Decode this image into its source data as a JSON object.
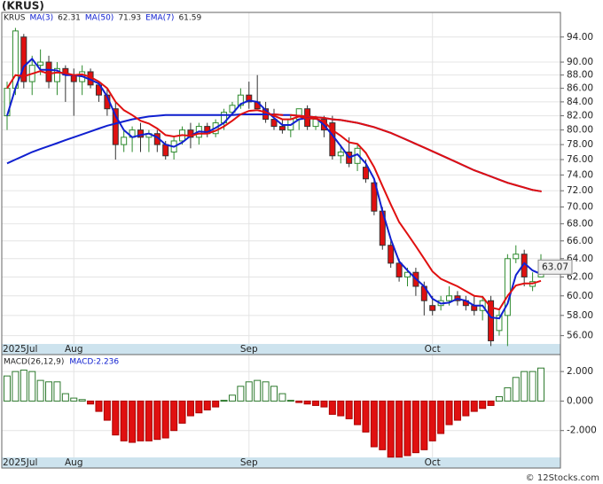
{
  "title": "(KRUS)",
  "credit": "© 12Stocks.com",
  "chart_data": [
    {
      "type": "candlestick",
      "label": "KRUS",
      "log_scale": true,
      "grid": true,
      "up_color": "#2e8b2e",
      "down_color": "#e01010",
      "categories": [
        "2025Jul",
        null,
        null,
        null,
        null,
        null,
        null,
        null,
        "Aug",
        null,
        null,
        null,
        null,
        null,
        null,
        null,
        null,
        null,
        null,
        null,
        null,
        null,
        null,
        null,
        null,
        null,
        null,
        null,
        null,
        "Sep",
        null,
        null,
        null,
        null,
        null,
        null,
        null,
        null,
        null,
        null,
        null,
        null,
        null,
        null,
        null,
        null,
        null,
        null,
        null,
        null,
        null,
        "Oct",
        null,
        null,
        null,
        null,
        null,
        null,
        null,
        null,
        null,
        null,
        null,
        null,
        null
      ],
      "open": [
        82,
        86,
        94,
        87,
        89.5,
        90,
        87,
        89,
        88,
        87,
        88.5,
        86.5,
        85,
        83,
        78,
        79,
        80,
        79,
        79.5,
        78,
        77,
        78.5,
        80,
        79,
        80.5,
        79.5,
        81,
        82.5,
        83.5,
        85,
        84,
        83,
        81.5,
        80.5,
        80,
        81.5,
        83,
        80.5,
        81.5,
        81,
        76.5,
        77,
        75.5,
        75,
        73,
        69.5,
        65.5,
        63.5,
        62,
        62.5,
        61,
        59,
        59,
        59.5,
        60,
        59.5,
        59,
        58.5,
        59.5,
        56.5,
        58,
        64,
        64.5,
        61,
        62
      ],
      "high": [
        87,
        95.5,
        94.5,
        91,
        92,
        91,
        90,
        89.5,
        89,
        89.5,
        89,
        87,
        86,
        84,
        80,
        80.5,
        81,
        80,
        80,
        78.5,
        79,
        80.5,
        81,
        81,
        81,
        81.5,
        83,
        84,
        86,
        87,
        88,
        84,
        83,
        81.5,
        82,
        83,
        83.5,
        82,
        82,
        82,
        78,
        79,
        78,
        76,
        73.5,
        70,
        66,
        64,
        63,
        63,
        61.5,
        60,
        60,
        61,
        60.5,
        60,
        60,
        60,
        60,
        58.5,
        64.5,
        65.5,
        65,
        62.5,
        64.5
      ],
      "low": [
        80,
        85,
        86,
        85,
        88,
        86,
        85,
        84,
        82,
        85,
        86,
        84,
        82,
        76,
        77,
        77,
        77,
        77,
        77,
        76,
        76,
        78,
        77.5,
        78,
        79,
        79,
        80,
        82,
        83,
        83,
        83,
        81,
        80,
        79.5,
        79,
        80,
        80,
        80,
        79,
        76,
        75.5,
        75,
        74.5,
        73,
        69,
        65,
        63,
        61.5,
        61,
        60,
        58,
        58,
        58.5,
        59,
        59,
        58.5,
        58,
        57.5,
        55,
        56,
        55,
        63.5,
        61,
        60.5,
        62
      ],
      "close": [
        86,
        95,
        87,
        89.5,
        90,
        87,
        89,
        88,
        87,
        88.5,
        86.5,
        85,
        83,
        78,
        79,
        80,
        79,
        79.5,
        78,
        76.5,
        78.5,
        80,
        79,
        80.5,
        79.5,
        81,
        82.5,
        83.5,
        85,
        84,
        83,
        81.5,
        80.5,
        80,
        81.5,
        83,
        80.5,
        81.5,
        80,
        76.5,
        77,
        75.5,
        77.5,
        73.5,
        69.5,
        65.5,
        63.5,
        62,
        62.5,
        61,
        59.5,
        58.5,
        59.5,
        60,
        59.5,
        59,
        58.5,
        59.5,
        55.5,
        58,
        64,
        64.5,
        62,
        61.5,
        63.07
      ],
      "series": [
        {
          "name": "MA(3)",
          "color": "#1020d0",
          "values": [
            82,
            86,
            89.3,
            90.5,
            88.8,
            88.8,
            88.7,
            88,
            88,
            87.8,
            87.3,
            86.7,
            84.8,
            82,
            80,
            79,
            79.3,
            79.5,
            79,
            78,
            77.7,
            78.3,
            79.2,
            79.8,
            79.7,
            80.3,
            81,
            82.3,
            83.7,
            84.2,
            84,
            82.8,
            81.7,
            80.7,
            80.7,
            81.5,
            81.7,
            81.7,
            80.7,
            79.3,
            77.8,
            76.3,
            76.7,
            75.5,
            73.5,
            69.5,
            66.2,
            63.7,
            62.7,
            61.8,
            61,
            59.7,
            59.2,
            59.3,
            59.7,
            59.5,
            59,
            59,
            57.8,
            57.7,
            59.2,
            62.2,
            63.5,
            62.7,
            62.31
          ]
        },
        {
          "name": "MA(50)",
          "color": "#1020d0",
          "falling_color": "#e01010",
          "values": [
            75.5,
            76,
            76.5,
            77,
            77.4,
            77.8,
            78.2,
            78.6,
            79,
            79.4,
            79.8,
            80.2,
            80.6,
            80.9,
            81.2,
            81.5,
            81.7,
            81.9,
            82,
            82.1,
            82.1,
            82.1,
            82.1,
            82.1,
            82.1,
            82.1,
            82.1,
            82.1,
            82.2,
            82.2,
            82.2,
            82.2,
            82.2,
            82.1,
            82.1,
            82,
            81.9,
            81.8,
            81.7,
            81.5,
            81.4,
            81.2,
            81,
            80.7,
            80.4,
            80,
            79.6,
            79.1,
            78.6,
            78.1,
            77.6,
            77.1,
            76.6,
            76.1,
            75.6,
            75.1,
            74.6,
            74.2,
            73.8,
            73.4,
            73,
            72.7,
            72.4,
            72.1,
            71.93
          ]
        },
        {
          "name": "EMA(7)",
          "color": "#e01010",
          "values": [
            86,
            88,
            87.8,
            88.2,
            88.6,
            88.2,
            88.4,
            88.3,
            88,
            88.1,
            87.7,
            87,
            86,
            84,
            82.8,
            82.1,
            81.3,
            80.9,
            80.2,
            79.3,
            79.1,
            79.3,
            79.2,
            79.5,
            79.5,
            79.9,
            80.5,
            81.3,
            82.2,
            82.7,
            82.8,
            82.5,
            82,
            81.5,
            81.5,
            81.9,
            81.6,
            81.6,
            81.2,
            80,
            79.2,
            78.3,
            78.1,
            76.9,
            75,
            72.6,
            70.3,
            68.2,
            66.8,
            65.4,
            64,
            62.6,
            61.8,
            61.4,
            61,
            60.5,
            60,
            59.9,
            58.8,
            58.6,
            60,
            61.1,
            61.3,
            61.3,
            61.59
          ]
        }
      ],
      "ylim": [
        55.2,
        98.1
      ],
      "yticks": [
        {
          "value": 56,
          "label": "56.00"
        },
        {
          "value": 58,
          "label": "58.00"
        },
        {
          "value": 60,
          "label": "60.00"
        },
        {
          "value": 62,
          "label": "62.00"
        },
        {
          "value": 64,
          "label": "64.00"
        },
        {
          "value": 66,
          "label": "66.00"
        },
        {
          "value": 68,
          "label": "68.00"
        },
        {
          "value": 70,
          "label": "70.00"
        },
        {
          "value": 72,
          "label": "72.00"
        },
        {
          "value": 74,
          "label": "74.00"
        },
        {
          "value": 76,
          "label": "76.00"
        },
        {
          "value": 78,
          "label": "78.00"
        },
        {
          "value": 80,
          "label": "80.00"
        },
        {
          "value": 82,
          "label": "82.00"
        },
        {
          "value": 84,
          "label": "84.00"
        },
        {
          "value": 86,
          "label": "86.00"
        },
        {
          "value": 88,
          "label": "88.00"
        },
        {
          "value": 90,
          "label": "90.00"
        },
        {
          "value": 94,
          "label": "94.00"
        }
      ]
    },
    {
      "type": "histogram-bar",
      "label": "MACD(26,12,9)",
      "legend": "MACD:2.236",
      "legend_color": "#1020d0",
      "up_color": "#2e7a2e",
      "down_color": "#e01010",
      "values": [
        1.7,
        2.0,
        2.1,
        2.0,
        1.4,
        1.3,
        1.3,
        0.5,
        0.2,
        0.1,
        -0.2,
        -0.7,
        -1.3,
        -2.3,
        -2.7,
        -2.8,
        -2.7,
        -2.7,
        -2.6,
        -2.5,
        -2.0,
        -1.5,
        -1.0,
        -0.8,
        -0.6,
        -0.4,
        0.05,
        0.4,
        1.0,
        1.3,
        1.4,
        1.3,
        1.0,
        0.5,
        0.05,
        -0.1,
        -0.2,
        -0.3,
        -0.4,
        -0.9,
        -1.0,
        -1.2,
        -1.6,
        -2.1,
        -3.1,
        -3.3,
        -3.8,
        -3.8,
        -3.7,
        -3.5,
        -3.3,
        -2.7,
        -2.2,
        -1.6,
        -1.3,
        -1.0,
        -0.7,
        -0.5,
        -0.3,
        0.3,
        0.9,
        1.6,
        2.0,
        2.0,
        2.236
      ],
      "ylim": [
        -3.82,
        3.15
      ],
      "yticks": [
        {
          "value": 2,
          "label": "2.000"
        },
        {
          "value": 0,
          "label": "0.000"
        },
        {
          "value": -2,
          "label": "-2.000"
        }
      ]
    }
  ]
}
